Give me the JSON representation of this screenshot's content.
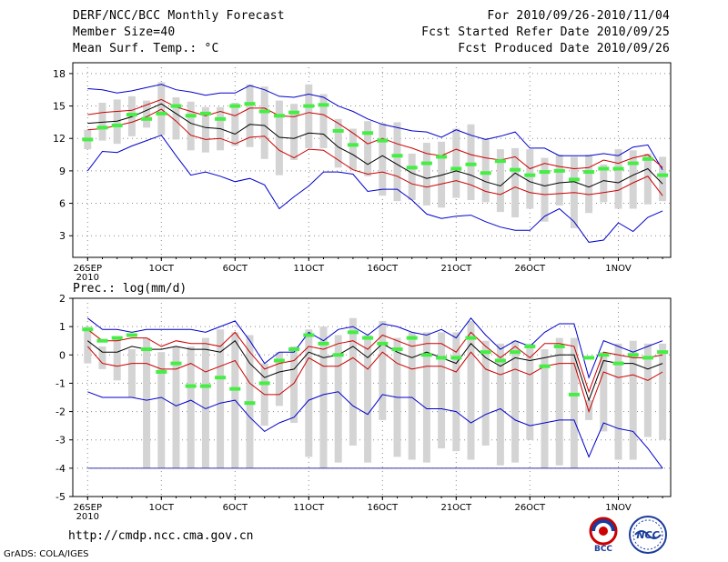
{
  "header": {
    "title": "DERF/NCC/BCC Monthly Forecast",
    "member_size": "Member Size=40",
    "variable": "Mean Surf. Temp.: °C",
    "period": "For 2010/09/26-2010/11/04",
    "fcst_started": "Fcst Started Refer Date 2010/09/25",
    "fcst_produced": "Fcst Produced Date 2010/09/26"
  },
  "footer": {
    "url": "http://cmdp.ncc.cma.gov.cn",
    "credit": "GrADS: COLA/IGES",
    "logo_bcc": "BCC",
    "logo_ncc": "NCC"
  },
  "colors": {
    "max_min": "#0000cc",
    "spread": "#cc0000",
    "mean": "#000000",
    "observed": "#44ee44",
    "box": "#d4d4d4",
    "grid": "#888888"
  },
  "chart_data": [
    {
      "type": "box-line",
      "title": "Mean Surf. Temp.: °C",
      "ylabel": "°C",
      "ylim": [
        1,
        19
      ],
      "yticks": [
        3,
        6,
        9,
        12,
        15,
        18
      ],
      "xticks": [
        {
          "day": 1,
          "label": "26SEP"
        },
        {
          "day": 6,
          "label": "1OCT"
        },
        {
          "day": 11,
          "label": "6OCT"
        },
        {
          "day": 16,
          "label": "11OCT"
        },
        {
          "day": 21,
          "label": "16OCT"
        },
        {
          "day": 26,
          "label": "21OCT"
        },
        {
          "day": 31,
          "label": "26OCT"
        },
        {
          "day": 37,
          "label": "1NOV"
        }
      ],
      "year_label": "2010",
      "days": 40,
      "max": [
        16.6,
        16.5,
        16.2,
        16.4,
        16.7,
        17.0,
        16.5,
        16.3,
        16.0,
        16.2,
        16.2,
        16.9,
        16.5,
        15.9,
        15.8,
        16.1,
        15.8,
        15.0,
        14.5,
        13.8,
        13.3,
        13.0,
        12.7,
        12.6,
        12.1,
        12.8,
        12.3,
        11.9,
        12.2,
        12.6,
        11.1,
        11.1,
        10.4,
        10.4,
        10.4,
        10.6,
        10.4,
        11.2,
        11.4,
        9.1
      ],
      "upper": [
        14.2,
        14.4,
        14.5,
        14.6,
        15.1,
        15.6,
        14.9,
        14.5,
        14.1,
        14.5,
        14.1,
        14.8,
        14.8,
        14.1,
        14.0,
        14.4,
        14.2,
        13.4,
        12.5,
        11.5,
        12.0,
        11.5,
        11.1,
        10.6,
        10.4,
        11.0,
        10.5,
        10.2,
        10.0,
        10.3,
        9.2,
        9.7,
        9.4,
        9.2,
        9.3,
        10.0,
        9.7,
        10.2,
        10.5,
        9.3
      ],
      "mean": [
        13.4,
        13.5,
        13.6,
        14.0,
        14.6,
        15.2,
        14.3,
        13.4,
        13.0,
        12.9,
        12.4,
        13.3,
        13.2,
        12.1,
        12.0,
        12.5,
        12.4,
        11.2,
        10.5,
        9.6,
        10.4,
        9.6,
        8.8,
        8.3,
        8.6,
        9.0,
        8.6,
        8.0,
        7.6,
        8.8,
        8.0,
        7.6,
        7.9,
        8.0,
        7.5,
        8.1,
        7.9,
        8.6,
        9.2,
        7.8
      ],
      "lower": [
        12.8,
        12.9,
        13.2,
        13.5,
        14.0,
        14.7,
        13.6,
        12.3,
        11.9,
        12.0,
        11.5,
        12.1,
        12.2,
        10.9,
        10.2,
        11.0,
        10.9,
        10.0,
        9.1,
        8.7,
        8.9,
        8.5,
        7.8,
        7.5,
        7.8,
        8.1,
        7.7,
        7.1,
        6.8,
        7.5,
        7.0,
        6.8,
        6.9,
        7.0,
        6.8,
        7.0,
        7.2,
        7.9,
        8.5,
        6.7
      ],
      "min": [
        9.0,
        10.8,
        10.7,
        11.3,
        11.8,
        12.3,
        10.4,
        8.6,
        8.9,
        8.5,
        8.0,
        8.3,
        7.7,
        5.5,
        6.6,
        7.6,
        8.9,
        8.9,
        8.7,
        7.1,
        7.3,
        7.3,
        6.3,
        5.0,
        4.6,
        4.8,
        4.9,
        4.3,
        3.8,
        3.5,
        3.5,
        4.8,
        5.5,
        4.3,
        2.4,
        2.6,
        4.2,
        3.4,
        4.7,
        5.3
      ],
      "box_hi": [
        12.8,
        15.3,
        15.6,
        15.9,
        15.5,
        17.2,
        15.8,
        15.4,
        14.9,
        14.9,
        15.3,
        17.0,
        16.8,
        15.5,
        15.2,
        17.0,
        16.1,
        13.8,
        12.9,
        13.6,
        13.4,
        13.5,
        10.6,
        11.6,
        11.7,
        12.9,
        13.3,
        12.0,
        11.0,
        11.1,
        11.0,
        10.2,
        10.5,
        10.3,
        10.5,
        9.6,
        11.0,
        10.9,
        10.6,
        10.3
      ],
      "box_lo": [
        11.0,
        11.8,
        11.5,
        12.2,
        13.0,
        12.3,
        11.9,
        10.9,
        10.7,
        10.9,
        11.3,
        11.2,
        10.1,
        8.6,
        10.0,
        11.1,
        11.1,
        9.3,
        9.1,
        8.5,
        6.7,
        6.2,
        6.3,
        5.8,
        5.6,
        6.5,
        6.3,
        6.1,
        5.2,
        4.7,
        5.5,
        4.3,
        5.8,
        3.7,
        5.1,
        6.1,
        5.5,
        5.5,
        5.9,
        6.2
      ],
      "observed": [
        11.9,
        13.0,
        13.2,
        14.2,
        13.8,
        14.3,
        15.0,
        14.1,
        14.3,
        13.8,
        15.0,
        15.2,
        14.5,
        14.1,
        14.4,
        15.0,
        15.1,
        12.7,
        11.4,
        12.5,
        11.8,
        10.4,
        9.3,
        9.7,
        10.3,
        9.2,
        9.6,
        8.8,
        9.9,
        9.1,
        8.6,
        8.9,
        9.0,
        8.2,
        8.9,
        9.2,
        9.2,
        9.7,
        10.1,
        8.6
      ]
    },
    {
      "type": "box-line",
      "title": "Prec.: log(mm/d)",
      "ylabel": "log(mm/d)",
      "ylim": [
        -5,
        2
      ],
      "yticks": [
        -5,
        -4,
        -3,
        -2,
        -1,
        0,
        1,
        2
      ],
      "xticks": [
        {
          "day": 1,
          "label": "26SEP"
        },
        {
          "day": 6,
          "label": "1OCT"
        },
        {
          "day": 11,
          "label": "6OCT"
        },
        {
          "day": 16,
          "label": "11OCT"
        },
        {
          "day": 21,
          "label": "16OCT"
        },
        {
          "day": 26,
          "label": "21OCT"
        },
        {
          "day": 31,
          "label": "26OCT"
        },
        {
          "day": 37,
          "label": "1NOV"
        }
      ],
      "year_label": "2010",
      "days": 40,
      "max": [
        1.3,
        0.9,
        0.9,
        0.8,
        0.9,
        0.9,
        0.9,
        0.9,
        0.8,
        1.0,
        1.2,
        0.5,
        -0.3,
        0.1,
        0.1,
        0.8,
        0.5,
        0.9,
        1.0,
        0.7,
        1.1,
        1.0,
        0.8,
        0.7,
        0.9,
        0.6,
        1.3,
        0.7,
        0.2,
        0.5,
        0.3,
        0.8,
        1.1,
        1.1,
        -0.8,
        0.5,
        0.3,
        0.1,
        0.3,
        0.5
      ],
      "upper": [
        0.9,
        0.5,
        0.5,
        0.6,
        0.6,
        0.3,
        0.5,
        0.4,
        0.4,
        0.3,
        0.8,
        0.1,
        -0.5,
        -0.3,
        -0.2,
        0.3,
        0.2,
        0.4,
        0.5,
        0.2,
        0.7,
        0.5,
        0.3,
        0.4,
        0.4,
        0.1,
        0.8,
        0.3,
        -0.1,
        0.3,
        -0.1,
        0.4,
        0.4,
        0.3,
        -1.3,
        0.1,
        0.0,
        -0.1,
        -0.1,
        0.0
      ],
      "mean": [
        0.5,
        0.1,
        0.1,
        0.3,
        0.2,
        0.2,
        0.3,
        0.2,
        0.2,
        0.1,
        0.5,
        -0.3,
        -0.8,
        -0.6,
        -0.5,
        0.1,
        -0.1,
        0.0,
        0.3,
        -0.1,
        0.4,
        0.1,
        -0.1,
        0.1,
        -0.1,
        -0.3,
        0.4,
        -0.1,
        -0.4,
        -0.1,
        -0.2,
        -0.1,
        0.0,
        0.0,
        -1.6,
        -0.2,
        -0.3,
        -0.3,
        -0.5,
        -0.3
      ],
      "lower": [
        0.3,
        -0.3,
        -0.4,
        -0.3,
        -0.3,
        -0.5,
        -0.5,
        -0.3,
        -0.6,
        -0.4,
        -0.2,
        -1.0,
        -1.4,
        -1.4,
        -1.0,
        -0.1,
        -0.4,
        -0.4,
        -0.1,
        -0.5,
        0.1,
        -0.3,
        -0.5,
        -0.4,
        -0.4,
        -0.6,
        0.1,
        -0.5,
        -0.7,
        -0.5,
        -0.7,
        -0.4,
        -0.3,
        -0.3,
        -2.0,
        -0.6,
        -0.8,
        -0.7,
        -0.9,
        -0.6
      ],
      "min": [
        -1.3,
        -1.5,
        -1.5,
        -1.5,
        -1.6,
        -1.5,
        -1.8,
        -1.6,
        -1.9,
        -1.7,
        -1.6,
        -2.2,
        -2.7,
        -2.4,
        -2.2,
        -1.6,
        -1.4,
        -1.3,
        -1.8,
        -2.1,
        -1.4,
        -1.5,
        -1.5,
        -1.9,
        -1.9,
        -2.0,
        -2.4,
        -2.1,
        -1.9,
        -2.3,
        -2.5,
        -2.4,
        -2.3,
        -2.3,
        -3.6,
        -2.4,
        -2.6,
        -2.7,
        -3.3,
        -4.0
      ],
      "box_hi": [
        1.0,
        0.3,
        0.6,
        0.2,
        0.6,
        0.1,
        0.3,
        0.3,
        0.6,
        0.9,
        0.8,
        0.7,
        -0.3,
        0.1,
        0.3,
        0.9,
        1.0,
        0.7,
        1.3,
        0.7,
        1.2,
        0.6,
        0.8,
        0.8,
        0.8,
        0.8,
        1.2,
        0.5,
        0.4,
        0.5,
        0.4,
        0.2,
        0.6,
        0.6,
        -1.6,
        0.1,
        0.4,
        0.5,
        0.4,
        0.4
      ],
      "box_lo": [
        -0.3,
        -0.5,
        -0.9,
        -1.5,
        -4.0,
        -4.0,
        -4.0,
        -4.0,
        -4.0,
        -4.0,
        -4.0,
        -4.0,
        -2.5,
        -1.8,
        -2.4,
        -3.6,
        -4.0,
        -3.8,
        -3.2,
        -3.8,
        -2.3,
        -3.6,
        -3.7,
        -3.8,
        -3.3,
        -3.4,
        -3.7,
        -3.2,
        -3.9,
        -3.8,
        -3.0,
        -4.0,
        -3.9,
        -4.0,
        -2.3,
        -2.7,
        -3.7,
        -3.7,
        -2.9,
        -3.0
      ],
      "zero_line": -4.0,
      "observed": [
        0.9,
        0.5,
        0.6,
        0.7,
        0.2,
        -0.6,
        -0.3,
        -1.1,
        -1.1,
        -0.8,
        -1.2,
        -1.7,
        -1.0,
        -0.2,
        0.2,
        0.7,
        0.4,
        0.0,
        0.8,
        0.6,
        0.4,
        0.2,
        0.6,
        0.0,
        -0.1,
        -0.1,
        0.6,
        0.1,
        -0.2,
        0.1,
        0.3,
        -0.4,
        0.3,
        -1.4,
        -0.1,
        0.0,
        -0.3,
        0.0,
        -0.1,
        0.1
      ]
    }
  ]
}
